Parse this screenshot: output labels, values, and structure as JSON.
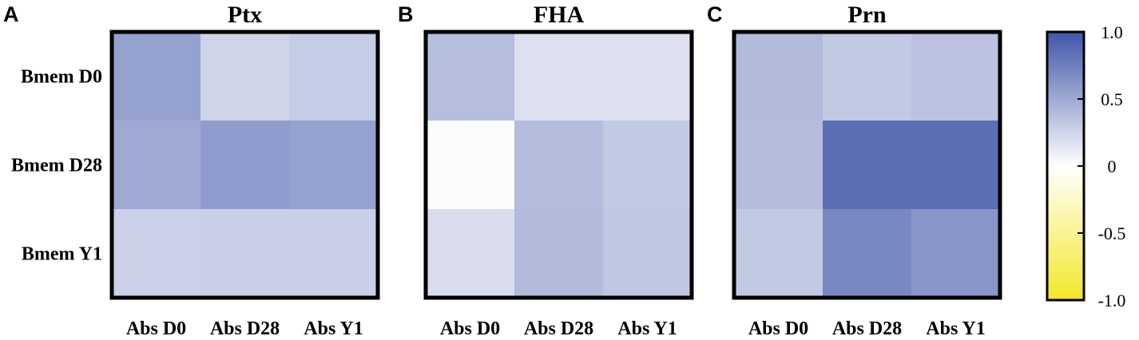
{
  "chart_data": [
    {
      "type": "heatmap",
      "panel_label": "A",
      "title": "Ptx",
      "rows": [
        "Bmem D0",
        "Bmem D28",
        "Bmem Y1"
      ],
      "columns": [
        "Abs D0",
        "Abs D28",
        "Abs Y1"
      ],
      "values": [
        [
          0.55,
          0.25,
          0.3
        ],
        [
          0.5,
          0.58,
          0.55
        ],
        [
          0.27,
          0.28,
          0.28
        ]
      ]
    },
    {
      "type": "heatmap",
      "panel_label": "B",
      "title": "FHA",
      "rows": [
        "Bmem D0",
        "Bmem D28",
        "Bmem Y1"
      ],
      "columns": [
        "Abs D0",
        "Abs D28",
        "Abs Y1"
      ],
      "values": [
        [
          0.38,
          0.18,
          0.17
        ],
        [
          0.02,
          0.39,
          0.32
        ],
        [
          0.2,
          0.4,
          0.33
        ]
      ]
    },
    {
      "type": "heatmap",
      "panel_label": "C",
      "title": "Prn",
      "rows": [
        "Bmem D0",
        "Bmem D28",
        "Bmem Y1"
      ],
      "columns": [
        "Abs D0",
        "Abs D28",
        "Abs Y1"
      ],
      "values": [
        [
          0.4,
          0.32,
          0.36
        ],
        [
          0.39,
          0.85,
          0.85
        ],
        [
          0.32,
          0.7,
          0.62
        ]
      ]
    }
  ],
  "colorbar": {
    "ticks": [
      1.0,
      0.5,
      0,
      -0.5,
      -1.0
    ],
    "tick_labels": [
      "1.0",
      "0.5",
      "0",
      "-0.5",
      "-1.0"
    ],
    "range": [
      -1.0,
      1.0
    ],
    "colors": {
      "high": "#3F55A8",
      "mid": "#FFFFFF",
      "low": "#F2E828"
    }
  }
}
